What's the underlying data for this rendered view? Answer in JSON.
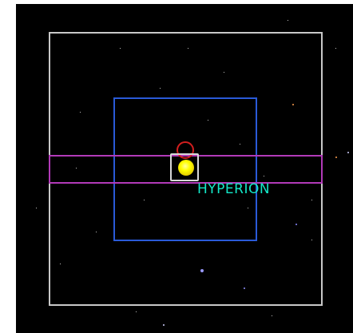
{
  "target": {
    "name": "HYPERION"
  },
  "colors": {
    "sky": "#000000",
    "outer_frame": "#c8c8c8",
    "inner_frame": "#2a5ad8",
    "strip_frame": "#b23ab8",
    "target_box": "#d8d8d8",
    "ring": "#d21e1e",
    "target_body": "#ffff00",
    "label": "#13e8c8"
  }
}
